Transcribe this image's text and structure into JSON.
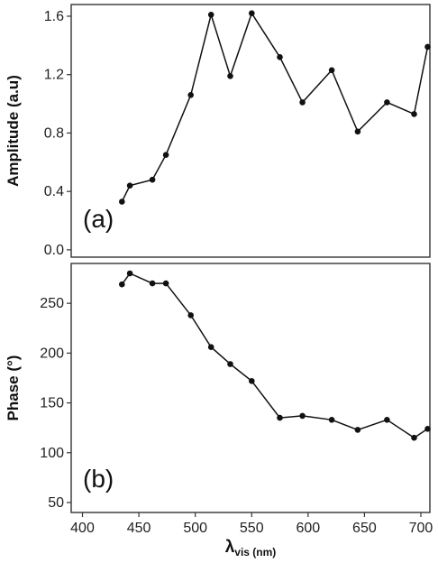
{
  "chart_data": [
    {
      "type": "line",
      "panel_label": "(a)",
      "ylabel": "Amplitude (a.u)",
      "xlim": [
        390,
        708
      ],
      "ylim": [
        -0.05,
        1.68
      ],
      "yticks": [
        0.0,
        0.4,
        0.8,
        1.2,
        1.6
      ],
      "ytick_labels": [
        "0.0",
        "0.4",
        "0.8",
        "1.2",
        "1.6"
      ],
      "grid": false,
      "x": [
        435,
        442,
        462,
        474,
        496,
        514,
        531,
        550,
        575,
        595,
        621,
        644,
        670,
        694,
        706
      ],
      "y": [
        0.33,
        0.44,
        0.48,
        0.65,
        1.06,
        1.61,
        1.19,
        1.62,
        1.32,
        1.01,
        1.23,
        0.81,
        1.01,
        0.93,
        1.39
      ]
    },
    {
      "type": "line",
      "panel_label": "(b)",
      "ylabel": "Phase (°)",
      "xlabel": "λvis (nm)",
      "xlabel_main": "λ",
      "xlabel_sub": "vis (nm)",
      "xlim": [
        390,
        708
      ],
      "ylim": [
        40,
        290
      ],
      "yticks": [
        50,
        100,
        150,
        200,
        250
      ],
      "ytick_labels": [
        "50",
        "100",
        "150",
        "200",
        "250"
      ],
      "xticks": [
        400,
        450,
        500,
        550,
        600,
        650,
        700
      ],
      "xtick_labels": [
        "400",
        "450",
        "500",
        "550",
        "600",
        "650",
        "700"
      ],
      "grid": false,
      "x": [
        435,
        442,
        462,
        474,
        496,
        514,
        531,
        550,
        575,
        595,
        621,
        644,
        670,
        694,
        706
      ],
      "y": [
        269,
        280,
        270,
        270,
        238,
        206,
        189,
        172,
        135,
        137,
        133,
        123,
        133,
        115,
        124
      ]
    }
  ]
}
